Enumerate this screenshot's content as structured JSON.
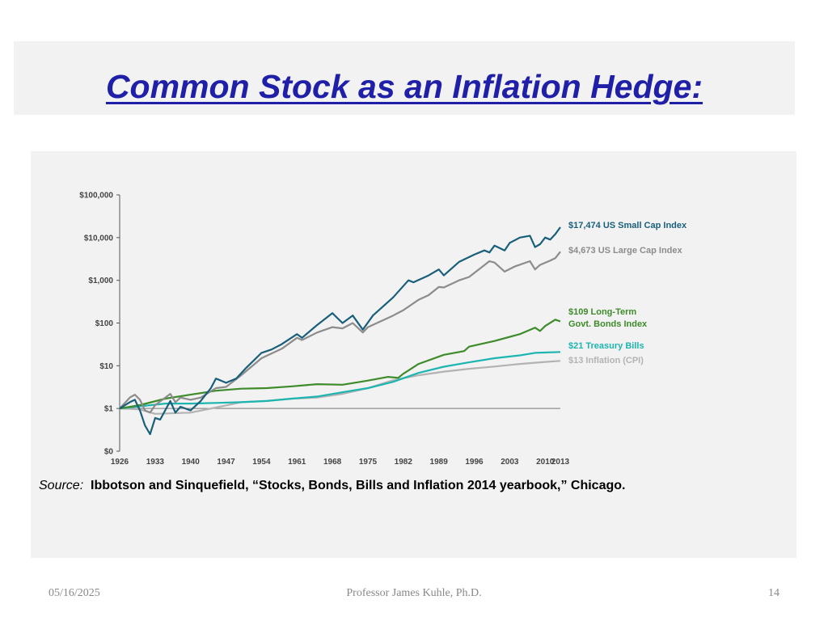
{
  "slide": {
    "title": "Common Stock as an Inflation Hedge:",
    "source_lead": "Source:",
    "source_text": "Ibbotson and Sinquefield, “Stocks, Bonds, Bills and Inflation 2014  yearbook,” Chicago.",
    "footer_date": "05/16/2025",
    "footer_author": "Professor James Kuhle, Ph.D.",
    "footer_page": "14"
  },
  "chart_data": {
    "type": "line",
    "y_scale": "log",
    "ylim": [
      0.1,
      100000
    ],
    "y_ticks": [
      {
        "value": 100000,
        "label": "$100,000"
      },
      {
        "value": 10000,
        "label": "$10,000"
      },
      {
        "value": 1000,
        "label": "$1,000"
      },
      {
        "value": 100,
        "label": "$100"
      },
      {
        "value": 10,
        "label": "$10"
      },
      {
        "value": 1,
        "label": "$1"
      },
      {
        "value": 0.1,
        "label": "$0"
      }
    ],
    "x_ticks": [
      "1926",
      "1933",
      "1940",
      "1947",
      "1954",
      "1961",
      "1968",
      "1975",
      "1982",
      "1989",
      "1996",
      "2003",
      "2010",
      "2013"
    ],
    "xlim": [
      1926,
      2013
    ],
    "grid": false,
    "series": [
      {
        "name": "$17,474 US Small Cap Index",
        "label_lines": [
          "$17,474 US Small Cap Index"
        ],
        "color": "#1a5f7a",
        "x": [
          1926,
          1928,
          1929,
          1930,
          1931,
          1932,
          1933,
          1934,
          1936,
          1937,
          1938,
          1940,
          1942,
          1944,
          1945,
          1946,
          1947,
          1949,
          1951,
          1954,
          1956,
          1958,
          1961,
          1962,
          1965,
          1968,
          1969,
          1970,
          1972,
          1974,
          1976,
          1980,
          1983,
          1984,
          1987,
          1989,
          1990,
          1993,
          1996,
          1998,
          1999,
          2000,
          2002,
          2003,
          2005,
          2007,
          2008,
          2009,
          2010,
          2011,
          2012,
          2013
        ],
        "y": [
          1,
          1.4,
          1.6,
          0.9,
          0.4,
          0.25,
          0.6,
          0.55,
          1.5,
          0.8,
          1.1,
          0.9,
          1.5,
          3,
          5,
          4.5,
          4,
          5,
          9,
          20,
          24,
          32,
          55,
          45,
          90,
          170,
          130,
          100,
          150,
          70,
          150,
          400,
          1000,
          900,
          1300,
          1800,
          1300,
          2700,
          4000,
          5000,
          4500,
          6500,
          5000,
          7500,
          10000,
          11000,
          6000,
          7000,
          10000,
          9000,
          12000,
          17474
        ]
      },
      {
        "name": "$4,673 US Large Cap Index",
        "label_lines": [
          "$4,673 US Large Cap Index"
        ],
        "color": "#8c8c8c",
        "x": [
          1926,
          1928,
          1929,
          1930,
          1931,
          1932,
          1933,
          1935,
          1936,
          1937,
          1938,
          1940,
          1942,
          1945,
          1947,
          1950,
          1954,
          1958,
          1961,
          1962,
          1965,
          1968,
          1970,
          1972,
          1974,
          1975,
          1980,
          1982,
          1985,
          1987,
          1989,
          1990,
          1993,
          1995,
          1999,
          2000,
          2002,
          2004,
          2007,
          2008,
          2009,
          2011,
          2012,
          2013
        ],
        "y": [
          1,
          1.8,
          2.1,
          1.6,
          0.9,
          0.8,
          1.2,
          1.8,
          2.2,
          1.4,
          1.8,
          1.6,
          1.8,
          3,
          3.2,
          6,
          15,
          25,
          45,
          40,
          60,
          80,
          75,
          100,
          60,
          80,
          150,
          200,
          350,
          450,
          700,
          680,
          1000,
          1200,
          2800,
          2600,
          1600,
          2100,
          2800,
          1800,
          2300,
          2900,
          3300,
          4673
        ]
      },
      {
        "name": "$109 Long-Term Govt. Bonds Index",
        "label_lines": [
          "$109 Long-Term",
          "Govt. Bonds Index"
        ],
        "color": "#3d8b2a",
        "x": [
          1926,
          1930,
          1935,
          1940,
          1945,
          1950,
          1955,
          1960,
          1965,
          1970,
          1975,
          1979,
          1981,
          1982,
          1985,
          1990,
          1994,
          1995,
          2000,
          2005,
          2008,
          2009,
          2010,
          2012,
          2013
        ],
        "y": [
          1,
          1.2,
          1.7,
          2.1,
          2.6,
          2.9,
          3.0,
          3.3,
          3.7,
          3.6,
          4.5,
          5.5,
          5.2,
          6.5,
          11,
          18,
          22,
          28,
          38,
          55,
          78,
          65,
          85,
          120,
          109
        ]
      },
      {
        "name": "$21 Treasury Bills",
        "label_lines": [
          "$21 Treasury Bills"
        ],
        "color": "#1cb5b0",
        "x": [
          1926,
          1935,
          1940,
          1945,
          1950,
          1955,
          1960,
          1965,
          1970,
          1975,
          1980,
          1985,
          1990,
          1995,
          2000,
          2005,
          2008,
          2013
        ],
        "y": [
          1,
          1.3,
          1.3,
          1.35,
          1.4,
          1.5,
          1.7,
          1.9,
          2.4,
          3.0,
          4.2,
          6.8,
          9.5,
          12,
          15,
          17.5,
          20,
          21
        ]
      },
      {
        "name": "$13 Inflation (CPI)",
        "label_lines": [
          "$13 Inflation (CPI)"
        ],
        "color": "#b3b3b3",
        "x": [
          1926,
          1930,
          1933,
          1940,
          1945,
          1950,
          1955,
          1960,
          1965,
          1970,
          1975,
          1980,
          1985,
          1990,
          1995,
          2000,
          2005,
          2010,
          2013
        ],
        "y": [
          1,
          0.95,
          0.75,
          0.8,
          1.05,
          1.4,
          1.5,
          1.7,
          1.8,
          2.2,
          3.0,
          4.6,
          6.0,
          7.3,
          8.5,
          9.6,
          11,
          12.3,
          13
        ]
      }
    ]
  }
}
